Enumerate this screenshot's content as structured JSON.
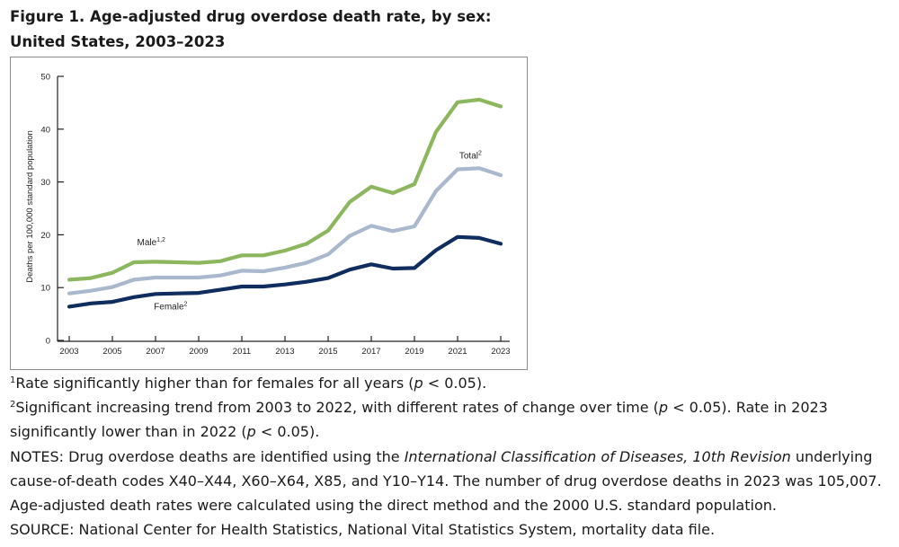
{
  "figure": {
    "title": "Figure 1. Age-adjusted drug overdose death rate, by sex: United States, 2003–2023"
  },
  "chart_data": {
    "type": "line",
    "title": "Figure 1. Age-adjusted drug overdose death rate, by sex: United States, 2003–2023",
    "xlabel": "",
    "ylabel": "Deaths per 100,000 standard population",
    "ylim": [
      0,
      50
    ],
    "yticks": [
      0,
      10,
      20,
      30,
      40,
      50
    ],
    "xticks": [
      2003,
      2005,
      2007,
      2009,
      2011,
      2013,
      2015,
      2017,
      2019,
      2021,
      2023
    ],
    "grid": false,
    "x": [
      2003,
      2004,
      2005,
      2006,
      2007,
      2008,
      2009,
      2010,
      2011,
      2012,
      2013,
      2014,
      2015,
      2016,
      2017,
      2018,
      2019,
      2020,
      2021,
      2022,
      2023
    ],
    "series": [
      {
        "name": "Male",
        "label_text": "Male",
        "label_sup": "1,2",
        "color": "#8db75e",
        "values": [
          11.5,
          11.8,
          12.8,
          14.8,
          14.9,
          14.8,
          14.7,
          15.0,
          16.1,
          16.1,
          17.0,
          18.3,
          20.8,
          26.2,
          29.1,
          27.9,
          29.6,
          39.5,
          45.1,
          45.6,
          44.3
        ]
      },
      {
        "name": "Total",
        "label_text": "Total",
        "label_sup": "2",
        "color": "#a9b8cc",
        "values": [
          8.9,
          9.4,
          10.1,
          11.5,
          11.9,
          11.9,
          11.9,
          12.3,
          13.2,
          13.1,
          13.8,
          14.7,
          16.3,
          19.8,
          21.7,
          20.7,
          21.6,
          28.3,
          32.4,
          32.6,
          31.3
        ]
      },
      {
        "name": "Female",
        "label_text": "Female",
        "label_sup": "2",
        "color": "#0f2d5e",
        "values": [
          6.4,
          7.0,
          7.3,
          8.2,
          8.8,
          8.9,
          9.0,
          9.6,
          10.2,
          10.2,
          10.6,
          11.1,
          11.8,
          13.4,
          14.4,
          13.6,
          13.7,
          17.1,
          19.6,
          19.4,
          18.3
        ]
      }
    ]
  },
  "footnotes": {
    "note1_sup": "1",
    "note1_a": "Rate significantly higher than for females for all years (",
    "note1_p": "p",
    "note1_b": " < 0.05).",
    "note2_sup": "2",
    "note2_a": "Significant increasing trend from 2003 to 2022, with different rates of change over time (",
    "note2_p": "p",
    "note2_b": " < 0.05). Rate in 2023 significantly lower than in 2022  (",
    "note2_p2": "p",
    "note2_c": " < 0.05).",
    "notes_a": "NOTES: Drug overdose deaths are identified using the ",
    "notes_icd": "International Classification of Diseases, 10th Revision",
    "notes_b": " underlying cause-of-death codes X40–X44, X60–X64, X85, and Y10–Y14. The number of drug overdose deaths in 2023 was 105,007. Age-adjusted death rates were calculated using the direct method and the 2000 U.S. standard population.",
    "source": "SOURCE: National Center for Health Statistics, National Vital Statistics System, mortality data file."
  }
}
